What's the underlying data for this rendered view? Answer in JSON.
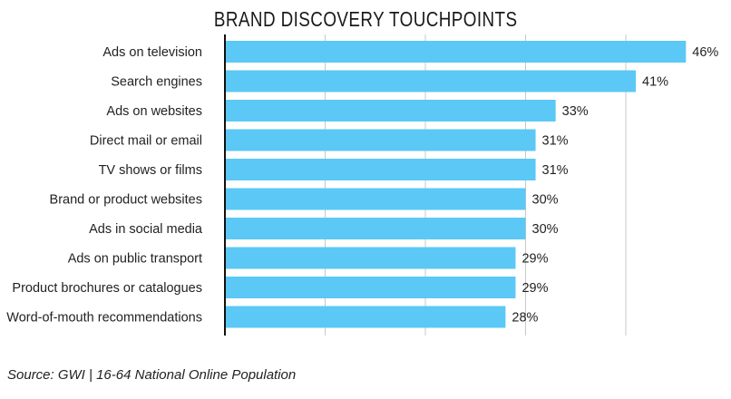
{
  "chart_data": {
    "type": "bar",
    "orientation": "horizontal",
    "title": "BRAND DISCOVERY TOUCHPOINTS",
    "categories": [
      "Ads on television",
      "Search engines",
      "Ads on websites",
      "Direct mail or email",
      "TV shows or films",
      "Brand or product websites",
      "Ads in social media",
      "Ads on public transport",
      "Product brochures or catalogues",
      "Word-of-mouth recommendations"
    ],
    "values": [
      46,
      41,
      33,
      31,
      31,
      30,
      30,
      29,
      29,
      28
    ],
    "value_labels": [
      "46%",
      "41%",
      "33%",
      "31%",
      "31%",
      "30%",
      "30%",
      "29%",
      "29%",
      "28%"
    ],
    "xlim": [
      0,
      50
    ],
    "grid": true,
    "bar_color": "#5bc8f5",
    "xlabel": "",
    "ylabel": ""
  },
  "source": "Source: GWI | 16-64 National Online Population"
}
